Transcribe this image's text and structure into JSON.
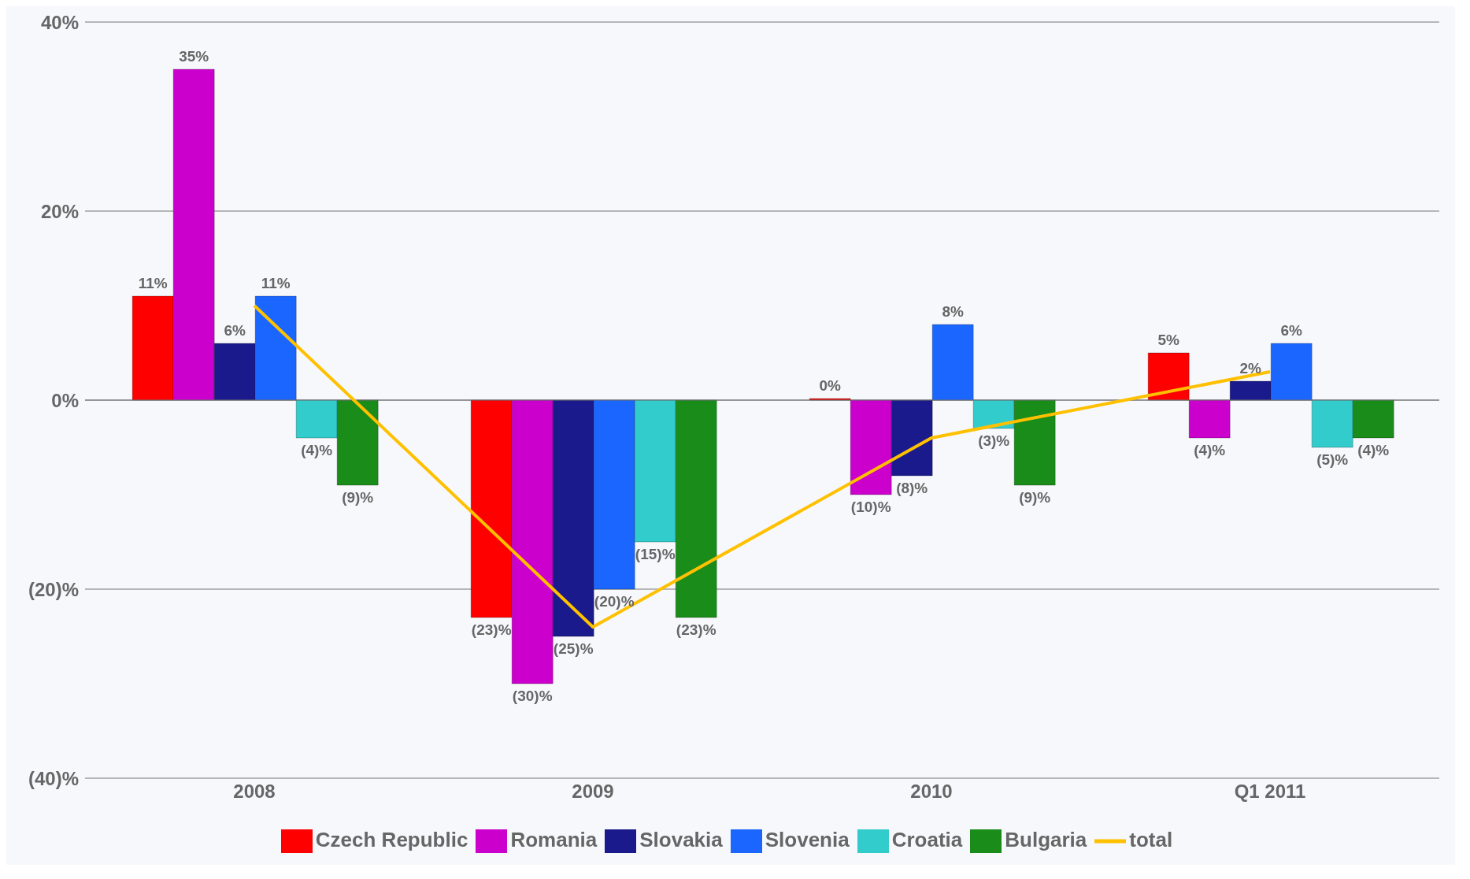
{
  "chart_data": {
    "type": "bar",
    "categories": [
      "2008",
      "2009",
      "2010",
      "Q1 2011"
    ],
    "series": [
      {
        "name": "Czech Republic",
        "color": "#ff0000",
        "values": [
          11,
          -23,
          0,
          5
        ],
        "value_labels": [
          "11%",
          "(23)%",
          "0%",
          "5%"
        ]
      },
      {
        "name": "Romania",
        "color": "#cc00cc",
        "values": [
          35,
          -30,
          -10,
          -4
        ],
        "value_labels": [
          "35%",
          "(30)%",
          "(10)%",
          "(4)%"
        ]
      },
      {
        "name": "Slovakia",
        "color": "#1a1a8c",
        "values": [
          6,
          -25,
          -8,
          2
        ],
        "value_labels": [
          "6%",
          "(25)%",
          "(8)%",
          "2%"
        ]
      },
      {
        "name": "Slovenia",
        "color": "#1a66ff",
        "values": [
          11,
          -20,
          8,
          6
        ],
        "value_labels": [
          "11%",
          "(20)%",
          "8%",
          "6%"
        ]
      },
      {
        "name": "Croatia",
        "color": "#33cccc",
        "values": [
          -4,
          -15,
          -3,
          -5
        ],
        "value_labels": [
          "(4)%",
          "(15)%",
          "(3)%",
          "(5)%"
        ]
      },
      {
        "name": "Bulgaria",
        "color": "#1a8c1a",
        "values": [
          -9,
          -23,
          -9,
          -4
        ],
        "value_labels": [
          "(9)%",
          "(23)%",
          "(9)%",
          "(4)%"
        ]
      },
      {
        "name": "total",
        "type": "line",
        "color": "#ffc000",
        "values": [
          10,
          -24,
          -4,
          3
        ]
      }
    ],
    "ylim": [
      -40,
      40
    ],
    "yticks": [
      {
        "value": -40,
        "label": "(40)%"
      },
      {
        "value": -20,
        "label": "(20)%"
      },
      {
        "value": 0,
        "label": "0%"
      },
      {
        "value": 20,
        "label": "20%"
      },
      {
        "value": 40,
        "label": "40%"
      }
    ],
    "grid": "y",
    "legend": "bottom",
    "marker": "none",
    "line_style": "solid"
  }
}
